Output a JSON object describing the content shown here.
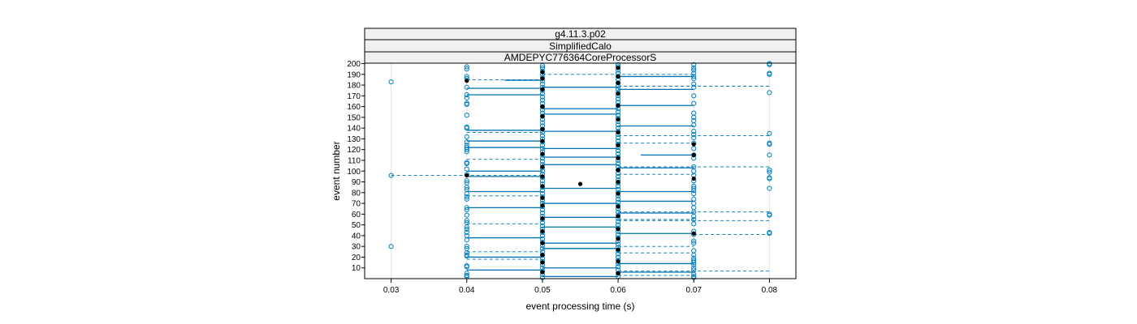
{
  "chart_data": {
    "type": "scatter",
    "strips": [
      "g4.11.3.p02",
      "SimplifiedCalo",
      "AMDEPYC776364CoreProcessorS"
    ],
    "xlabel": "event processing time (s)",
    "ylabel": "event number",
    "xlim": [
      0.0265,
      0.0835
    ],
    "ylim": [
      0,
      200
    ],
    "x_ticks": [
      "0.03",
      "0.04",
      "0.05",
      "0.06",
      "0.07",
      "0.08"
    ],
    "y_ticks": [
      "10",
      "20",
      "30",
      "40",
      "50",
      "60",
      "70",
      "80",
      "90",
      "100",
      "110",
      "120",
      "130",
      "140",
      "150",
      "160",
      "170",
      "180",
      "190",
      "200"
    ],
    "colors": {
      "open_points": "#0080bf",
      "filled_points": "#000000",
      "lines": "#0072b2",
      "strip_bg": "#f0f0f0",
      "frame": "#000000",
      "grid": "#e6e6e6"
    },
    "grid": "vertical guide lines at x ticks",
    "note_series": {
      "open_circles": "observations per event (estimated)",
      "filled_circles": "mean time per event (estimated)"
    },
    "highlights": [
      {
        "event": 183,
        "x": 0.03
      },
      {
        "event": 30,
        "x": 0.03
      },
      {
        "event": 88,
        "x": 0.055
      },
      {
        "event": 96,
        "x": 0.03
      }
    ],
    "open_by_column": {
      "0.04": [
        197,
        195,
        188,
        186,
        178,
        171,
        168,
        163,
        162,
        152,
        141,
        140,
        132,
        127,
        124,
        122,
        120,
        118,
        108,
        107,
        102,
        97,
        91,
        89,
        85,
        83,
        79,
        76,
        74,
        66,
        64,
        59,
        54,
        52,
        48,
        46,
        43,
        40,
        36,
        30,
        28,
        24,
        22,
        21,
        12,
        11,
        5,
        3,
        2
      ],
      "0.05": [
        198,
        196,
        193,
        190,
        187,
        184,
        181,
        178,
        175,
        172,
        169,
        166,
        163,
        160,
        157,
        154,
        151,
        148,
        145,
        142,
        139,
        136,
        133,
        130,
        127,
        124,
        121,
        118,
        115,
        112,
        109,
        106,
        103,
        100,
        97,
        94,
        91,
        88,
        85,
        82,
        79,
        76,
        73,
        70,
        67,
        64,
        61,
        58,
        55,
        52,
        49,
        46,
        43,
        40,
        37,
        34,
        31,
        28,
        25,
        22,
        19,
        16,
        13,
        10,
        7,
        4,
        1
      ],
      "0.06": [
        199,
        197,
        194,
        191,
        188,
        185,
        182,
        179,
        176,
        173,
        170,
        167,
        164,
        161,
        158,
        155,
        152,
        149,
        146,
        143,
        140,
        137,
        134,
        131,
        128,
        125,
        122,
        119,
        116,
        113,
        110,
        107,
        104,
        101,
        98,
        95,
        92,
        89,
        86,
        83,
        80,
        77,
        74,
        71,
        68,
        65,
        62,
        59,
        56,
        53,
        50,
        47,
        44,
        41,
        38,
        35,
        32,
        29,
        26,
        23,
        20,
        17,
        14,
        11,
        8,
        5,
        2
      ],
      "0.07": [
        199,
        196,
        194,
        191,
        188,
        186,
        181,
        178,
        170,
        163,
        154,
        150,
        147,
        143,
        137,
        134,
        131,
        126,
        121,
        115,
        112,
        104,
        100,
        96,
        91,
        86,
        84,
        82,
        79,
        74,
        70,
        66,
        62,
        58,
        55,
        51,
        44,
        41,
        35,
        33,
        26,
        22,
        19,
        17,
        15,
        13,
        10,
        8,
        4,
        2,
        1
      ],
      "0.08": [
        200,
        199,
        191,
        190,
        173,
        135,
        126,
        125,
        115,
        101,
        99,
        94,
        93,
        84,
        60,
        59,
        43,
        42
      ]
    },
    "filled_by_column": {
      "0.04": [
        184,
        96
      ],
      "0.05": [
        192,
        186,
        176,
        160,
        151,
        139,
        128,
        116,
        104,
        95,
        86,
        75,
        68,
        56,
        44,
        33,
        22,
        15,
        6
      ],
      "0.06": [
        196,
        188,
        182,
        172,
        161,
        148,
        136,
        124,
        112,
        101,
        90,
        79,
        67,
        58,
        46,
        37,
        27,
        16,
        5
      ],
      "0.07": [
        125,
        115,
        93,
        42
      ],
      "0.055": [
        88
      ]
    },
    "segments": [
      {
        "y": 185,
        "x1": 0.04,
        "x2": 0.05,
        "style": "dashed"
      },
      {
        "y": 184.5,
        "x1": 0.045,
        "x2": 0.05,
        "style": "solid"
      },
      {
        "y": 96,
        "x1": 0.03,
        "x2": 0.05,
        "style": "dashed"
      },
      {
        "y": 95,
        "x1": 0.04,
        "x2": 0.05,
        "style": "solid"
      },
      {
        "y": 179,
        "x1": 0.06,
        "x2": 0.08,
        "style": "dashed"
      },
      {
        "y": 104,
        "x1": 0.06,
        "x2": 0.08,
        "style": "dashed"
      },
      {
        "y": 133,
        "x1": 0.06,
        "x2": 0.08,
        "style": "dashed"
      },
      {
        "y": 62,
        "x1": 0.06,
        "x2": 0.08,
        "style": "dashed"
      },
      {
        "y": 54,
        "x1": 0.06,
        "x2": 0.08,
        "style": "dashed"
      },
      {
        "y": 41,
        "x1": 0.07,
        "x2": 0.08,
        "style": "dashed"
      },
      {
        "y": 7,
        "x1": 0.06,
        "x2": 0.08,
        "style": "dashed"
      },
      {
        "y": 115,
        "x1": 0.063,
        "x2": 0.07,
        "style": "solid"
      },
      {
        "y": 138,
        "x1": 0.04,
        "x2": 0.05,
        "style": "solid"
      },
      {
        "y": 136,
        "x1": 0.04,
        "x2": 0.05,
        "style": "dashed"
      },
      {
        "y": 111,
        "x1": 0.04,
        "x2": 0.05,
        "style": "dashed"
      },
      {
        "y": 81,
        "x1": 0.04,
        "x2": 0.05,
        "style": "solid"
      },
      {
        "y": 77,
        "x1": 0.04,
        "x2": 0.05,
        "style": "dashed"
      },
      {
        "y": 51,
        "x1": 0.04,
        "x2": 0.05,
        "style": "dashed"
      },
      {
        "y": 38,
        "x1": 0.04,
        "x2": 0.05,
        "style": "solid"
      },
      {
        "y": 25,
        "x1": 0.04,
        "x2": 0.05,
        "style": "dashed"
      },
      {
        "y": 20,
        "x1": 0.04,
        "x2": 0.05,
        "style": "solid"
      },
      {
        "y": 18,
        "x1": 0.04,
        "x2": 0.05,
        "style": "dashed"
      },
      {
        "y": 171,
        "x1": 0.04,
        "x2": 0.05,
        "style": "solid"
      },
      {
        "y": 177,
        "x1": 0.04,
        "x2": 0.05,
        "style": "solid"
      },
      {
        "y": 122,
        "x1": 0.04,
        "x2": 0.05,
        "style": "solid"
      },
      {
        "y": 128,
        "x1": 0.04,
        "x2": 0.05,
        "style": "solid"
      },
      {
        "y": 100,
        "x1": 0.04,
        "x2": 0.05,
        "style": "solid"
      },
      {
        "y": 66,
        "x1": 0.04,
        "x2": 0.05,
        "style": "solid"
      },
      {
        "y": 8,
        "x1": 0.04,
        "x2": 0.05,
        "style": "solid"
      },
      {
        "y": 190,
        "x1": 0.05,
        "x2": 0.07,
        "style": "dashed"
      },
      {
        "y": 188,
        "x1": 0.06,
        "x2": 0.07,
        "style": "solid"
      },
      {
        "y": 176,
        "x1": 0.06,
        "x2": 0.07,
        "style": "solid"
      },
      {
        "y": 161,
        "x1": 0.06,
        "x2": 0.07,
        "style": "solid"
      },
      {
        "y": 142,
        "x1": 0.06,
        "x2": 0.07,
        "style": "solid"
      },
      {
        "y": 126,
        "x1": 0.06,
        "x2": 0.07,
        "style": "dashed"
      },
      {
        "y": 103,
        "x1": 0.06,
        "x2": 0.07,
        "style": "solid"
      },
      {
        "y": 97,
        "x1": 0.06,
        "x2": 0.07,
        "style": "dashed"
      },
      {
        "y": 81,
        "x1": 0.06,
        "x2": 0.07,
        "style": "solid"
      },
      {
        "y": 72,
        "x1": 0.06,
        "x2": 0.07,
        "style": "solid"
      },
      {
        "y": 61,
        "x1": 0.06,
        "x2": 0.07,
        "style": "solid"
      },
      {
        "y": 55,
        "x1": 0.06,
        "x2": 0.07,
        "style": "dashed"
      },
      {
        "y": 42,
        "x1": 0.06,
        "x2": 0.07,
        "style": "solid"
      },
      {
        "y": 30,
        "x1": 0.06,
        "x2": 0.07,
        "style": "dashed"
      },
      {
        "y": 24,
        "x1": 0.06,
        "x2": 0.07,
        "style": "dashed"
      },
      {
        "y": 14,
        "x1": 0.06,
        "x2": 0.07,
        "style": "solid"
      },
      {
        "y": 6,
        "x1": 0.06,
        "x2": 0.07,
        "style": "solid"
      },
      {
        "y": 3,
        "x1": 0.06,
        "x2": 0.07,
        "style": "dashed"
      },
      {
        "y": 178,
        "x1": 0.05,
        "x2": 0.06,
        "style": "solid"
      },
      {
        "y": 158,
        "x1": 0.05,
        "x2": 0.06,
        "style": "solid"
      },
      {
        "y": 153,
        "x1": 0.05,
        "x2": 0.06,
        "style": "solid"
      },
      {
        "y": 137,
        "x1": 0.05,
        "x2": 0.06,
        "style": "solid"
      },
      {
        "y": 121,
        "x1": 0.05,
        "x2": 0.06,
        "style": "solid"
      },
      {
        "y": 113,
        "x1": 0.05,
        "x2": 0.06,
        "style": "solid"
      },
      {
        "y": 106,
        "x1": 0.05,
        "x2": 0.06,
        "style": "solid"
      },
      {
        "y": 84,
        "x1": 0.05,
        "x2": 0.06,
        "style": "solid"
      },
      {
        "y": 70,
        "x1": 0.05,
        "x2": 0.06,
        "style": "solid"
      },
      {
        "y": 57,
        "x1": 0.05,
        "x2": 0.06,
        "style": "solid"
      },
      {
        "y": 48,
        "x1": 0.05,
        "x2": 0.06,
        "style": "solid"
      },
      {
        "y": 33,
        "x1": 0.05,
        "x2": 0.06,
        "style": "solid"
      },
      {
        "y": 28,
        "x1": 0.05,
        "x2": 0.06,
        "style": "solid"
      },
      {
        "y": 10,
        "x1": 0.05,
        "x2": 0.06,
        "style": "solid"
      },
      {
        "y": 2,
        "x1": 0.05,
        "x2": 0.06,
        "style": "solid"
      }
    ]
  }
}
